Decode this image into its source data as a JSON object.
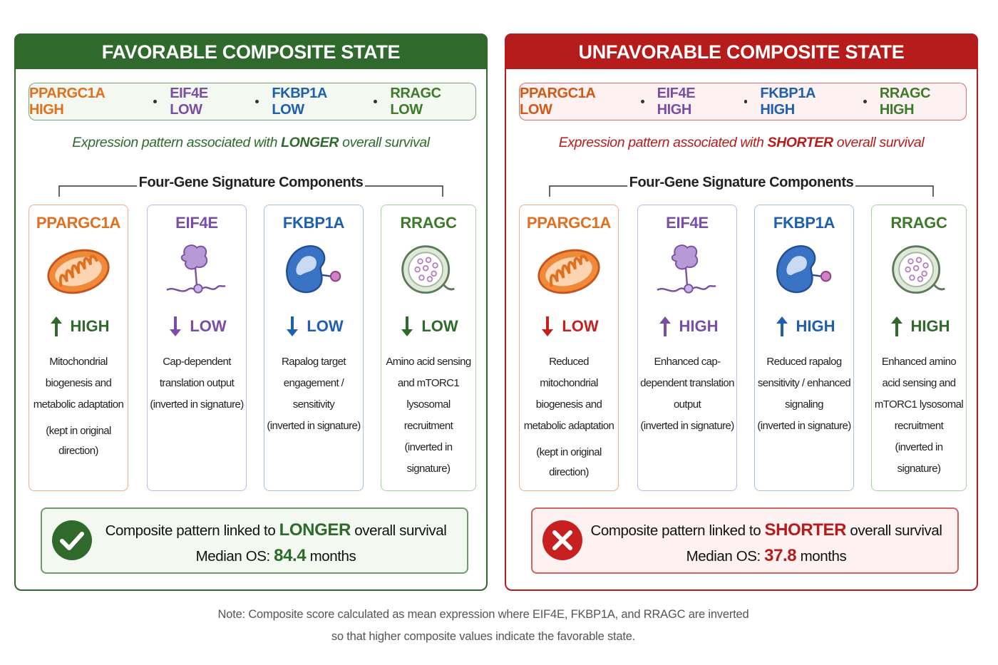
{
  "panels": [
    {
      "title": "FAVORABLE COMPOSITE STATE",
      "theme_color": "#2f6a2c",
      "tint": "#f3f8f0",
      "genes": [
        {
          "label": "PPARGC1A HIGH",
          "color": "#e0701f"
        },
        {
          "label": "EIF4E LOW",
          "color": "#7a4fa3"
        },
        {
          "label": "FKBP1A LOW",
          "color": "#1f5fae"
        },
        {
          "label": "RRAGC LOW",
          "color": "#3f7a2c"
        }
      ],
      "subtitle": {
        "before": "Expression pattern associated with",
        "emphasis": "LONGER",
        "after": "overall survival"
      },
      "section_heading": "Four-Gene Signature Components",
      "cards": [
        {
          "name": "PPARGC1A",
          "level": "HIGH",
          "arrow": "up",
          "level_color": "#2f6a2c",
          "color": "#e0701f",
          "border": "#f2ad80",
          "description": "Mitochondrial biogenesis and metabolic adaptation",
          "note": "(kept in original direction)"
        },
        {
          "name": "EIF4E",
          "level": "LOW",
          "arrow": "down",
          "level_color": "#7a4fa3",
          "color": "#7a4fa3",
          "border": "#c9b3e2",
          "description": "Cap-dependent translation output",
          "note": "(inverted in signature)"
        },
        {
          "name": "FKBP1A",
          "level": "LOW",
          "arrow": "down",
          "level_color": "#1f5fae",
          "color": "#1f5fae",
          "border": "#a5bfe5",
          "description": "Rapalog target engagement / sensitivity",
          "note": "(inverted in signature)"
        },
        {
          "name": "RRAGC",
          "level": "LOW",
          "arrow": "down",
          "level_color": "#2f6a2c",
          "color": "#3f7a2c",
          "border": "#a9cfa2",
          "description": "Amino acid sensing and mTORC1 lysosomal recruitment",
          "note": "(inverted in signature)"
        }
      ],
      "summary": {
        "before": "Composite pattern linked to",
        "emphasis": "LONGER",
        "after": "overall survival",
        "median_label": "Median OS:",
        "median_value": "84.4",
        "median_unit": "months"
      }
    },
    {
      "title": "UNFAVORABLE COMPOSITE STATE",
      "theme_color": "#b71c1c",
      "tint": "#fdf1f1",
      "genes": [
        {
          "label": "PPARGC1A LOW",
          "color": "#d05a15"
        },
        {
          "label": "EIF4E HIGH",
          "color": "#7a4fa3"
        },
        {
          "label": "FKBP1A HIGH",
          "color": "#1f5fae"
        },
        {
          "label": "RRAGC HIGH",
          "color": "#3f7a2c"
        }
      ],
      "subtitle": {
        "before": "Expression pattern associated with",
        "emphasis": "SHORTER",
        "after": "overall survival"
      },
      "section_heading": "Four-Gene Signature Components",
      "cards": [
        {
          "name": "PPARGC1A",
          "level": "LOW",
          "arrow": "down",
          "level_color": "#c62020",
          "color": "#e0701f",
          "border": "#f2ad80",
          "description": "Reduced mitochondrial biogenesis and metabolic adaptation",
          "note": "(kept in original direction)"
        },
        {
          "name": "EIF4E",
          "level": "HIGH",
          "arrow": "up",
          "level_color": "#7a4fa3",
          "color": "#7a4fa3",
          "border": "#c9b3e2",
          "description": "Enhanced cap-dependent translation output",
          "note": "(inverted in signature)"
        },
        {
          "name": "FKBP1A",
          "level": "HIGH",
          "arrow": "up",
          "level_color": "#1f5fae",
          "color": "#1f5fae",
          "border": "#a5bfe5",
          "description": "Reduced rapalog sensitivity / enhanced signaling",
          "note": "(inverted in signature)"
        },
        {
          "name": "RRAGC",
          "level": "HIGH",
          "arrow": "up",
          "level_color": "#2f6a2c",
          "color": "#3f7a2c",
          "border": "#a9cfa2",
          "description": "Enhanced amino acid sensing and mTORC1 lysosomal recruitment",
          "note": "(inverted in signature)"
        }
      ],
      "summary": {
        "before": "Composite pattern linked to",
        "emphasis": "SHORTER",
        "after": "overall survival",
        "median_label": "Median OS:",
        "median_value": "37.8",
        "median_unit": "months"
      }
    }
  ],
  "footer": {
    "lines": [
      "Note: Composite score calculated as mean expression where EIF4E, FKBP1A, and RRAGC are inverted",
      "so that higher composite values indicate the favorable state."
    ]
  }
}
